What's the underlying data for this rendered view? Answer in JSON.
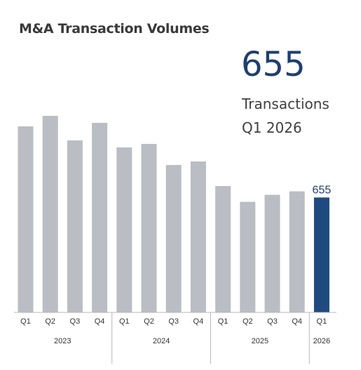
{
  "header": {
    "title": "M&A Transaction Volumes"
  },
  "kpi": {
    "value": "655",
    "label_line1": "Transactions",
    "label_line2": "Q1 2026"
  },
  "colors": {
    "bar_default": "#babdc4",
    "bar_highlight": "#1f4a80",
    "axis": "#b8b8b8",
    "text": "#333333"
  },
  "chart_data": {
    "type": "bar",
    "categories": [
      "Q1",
      "Q2",
      "Q3",
      "Q4",
      "Q1",
      "Q2",
      "Q3",
      "Q4",
      "Q1",
      "Q2",
      "Q3",
      "Q4",
      "Q1"
    ],
    "groups": [
      {
        "label": "2023",
        "count": 4
      },
      {
        "label": "2024",
        "count": 4
      },
      {
        "label": "2025",
        "count": 4
      },
      {
        "label": "2026",
        "count": 1
      }
    ],
    "values": [
      1060,
      1120,
      980,
      1080,
      940,
      960,
      840,
      860,
      720,
      630,
      670,
      690,
      655
    ],
    "highlight_index": 12,
    "data_labels": [
      {
        "index": 12,
        "text": "655"
      }
    ],
    "ylim": [
      0,
      1300
    ],
    "grid": false
  }
}
